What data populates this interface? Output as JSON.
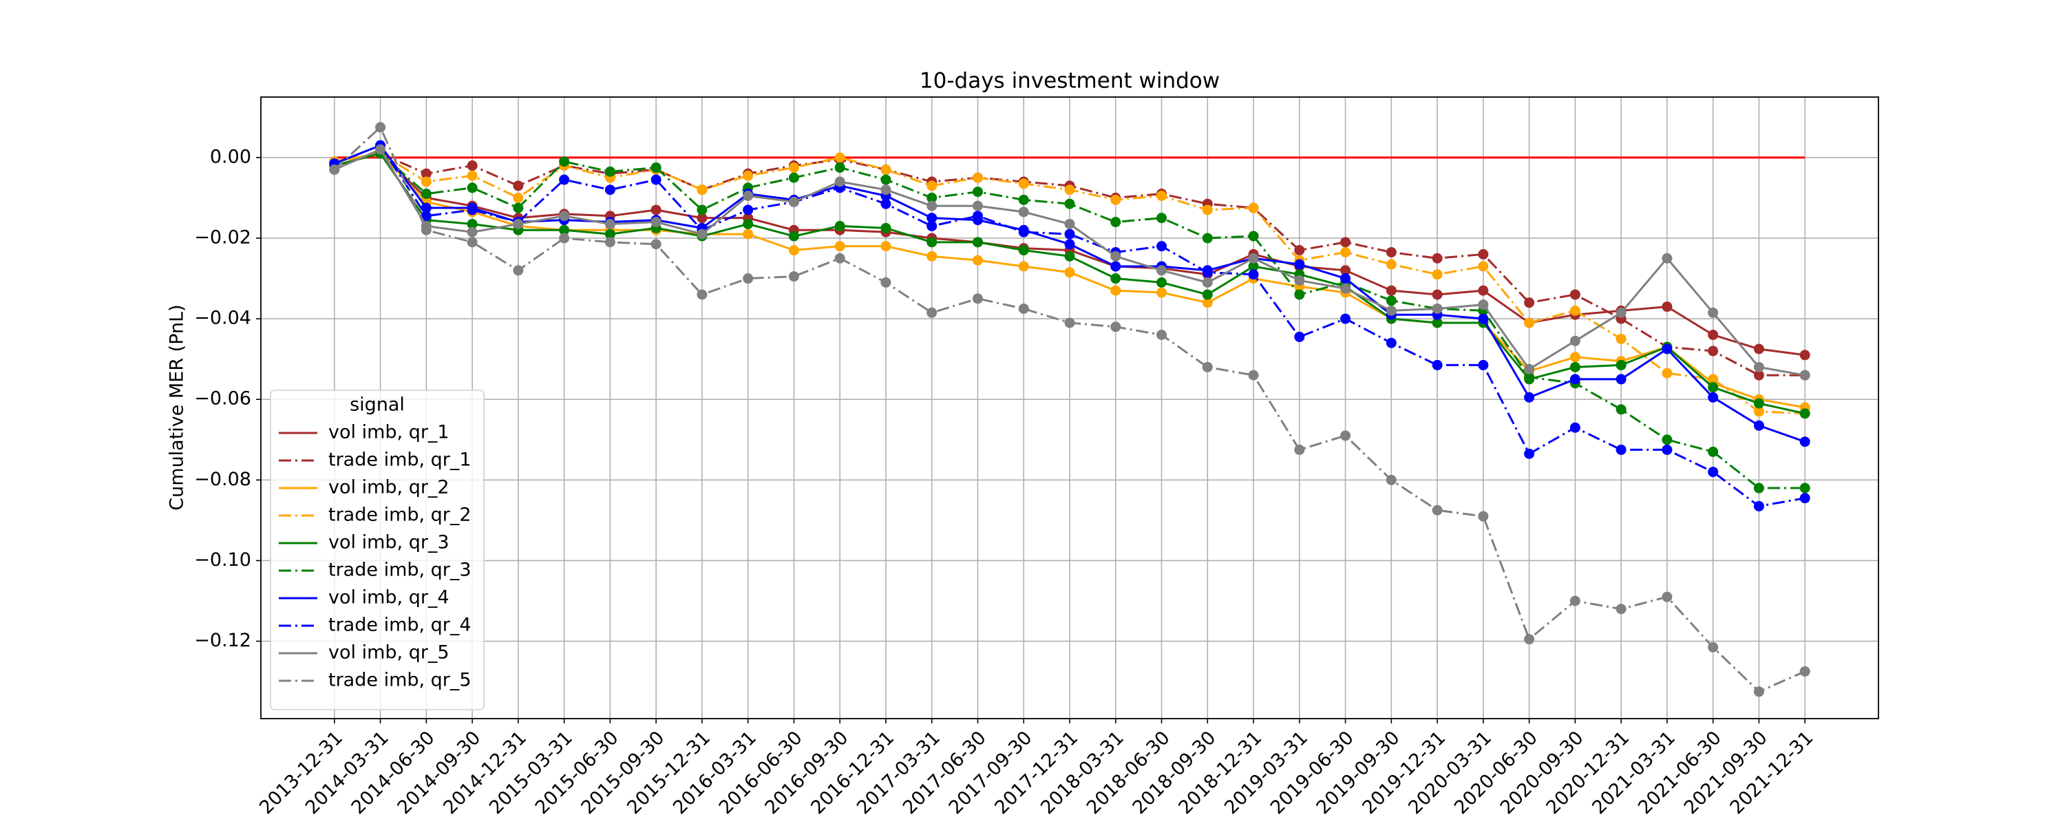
{
  "chart_data": {
    "type": "line",
    "title": "10-days investment window",
    "y_label": "Cumulative MER (PnL)",
    "legend_title": "signal",
    "legend_loc": "lower left",
    "grid": true,
    "categories": [
      "2013-12-31",
      "2014-03-31",
      "2014-06-30",
      "2014-09-30",
      "2014-12-31",
      "2015-03-31",
      "2015-06-30",
      "2015-09-30",
      "2015-12-31",
      "2016-03-31",
      "2016-06-30",
      "2016-09-30",
      "2016-12-31",
      "2017-03-31",
      "2017-06-30",
      "2017-09-30",
      "2017-12-31",
      "2018-03-31",
      "2018-06-30",
      "2018-09-30",
      "2018-12-31",
      "2019-03-31",
      "2019-06-30",
      "2019-09-30",
      "2019-12-31",
      "2020-03-31",
      "2020-06-30",
      "2020-09-30",
      "2020-12-31",
      "2021-03-31",
      "2021-06-30",
      "2021-09-30",
      "2021-12-31"
    ],
    "ylim": [
      -0.1392,
      0.015
    ],
    "yticks": [
      {
        "value": 0,
        "label": "0.00"
      },
      {
        "value": -0.02,
        "label": "−0.02"
      },
      {
        "value": -0.04,
        "label": "−0.04"
      },
      {
        "value": -0.06,
        "label": "−0.06"
      },
      {
        "value": -0.08,
        "label": "−0.08"
      },
      {
        "value": -0.1,
        "label": "−0.10"
      },
      {
        "value": -0.12,
        "label": "−0.12"
      }
    ],
    "series": [
      {
        "color": "#ff0000",
        "linestyle": "solid",
        "marker": false,
        "values": [
          0,
          0,
          0,
          0,
          0,
          0,
          0,
          0,
          0,
          0,
          0,
          0,
          0,
          0,
          0,
          0,
          0,
          0,
          0,
          0,
          0,
          0,
          0,
          0,
          0,
          0,
          0,
          0,
          0,
          0,
          0,
          0,
          0
        ]
      },
      {
        "name": "vol imb, qr_1",
        "color": "#a52a2a",
        "linestyle": "solid",
        "marker": true,
        "values": [
          -0.001,
          0.001,
          -0.01,
          -0.012,
          -0.015,
          -0.014,
          -0.0145,
          -0.013,
          -0.015,
          -0.015,
          -0.018,
          -0.018,
          -0.0185,
          -0.02,
          -0.021,
          -0.0225,
          -0.023,
          -0.027,
          -0.0275,
          -0.029,
          -0.024,
          -0.027,
          -0.028,
          -0.033,
          -0.034,
          -0.033,
          -0.041,
          -0.039,
          -0.038,
          -0.037,
          -0.044,
          -0.0475,
          -0.049
        ]
      },
      {
        "name": "trade imb, qr_1",
        "color": "#a52a2a",
        "linestyle": "dashdot",
        "marker": true,
        "values": [
          -0.001,
          0.001,
          -0.004,
          -0.002,
          -0.007,
          -0.002,
          -0.004,
          -0.003,
          -0.008,
          -0.004,
          -0.002,
          -0.0005,
          -0.003,
          -0.006,
          -0.005,
          -0.006,
          -0.007,
          -0.01,
          -0.009,
          -0.0115,
          -0.0125,
          -0.023,
          -0.021,
          -0.0235,
          -0.025,
          -0.024,
          -0.036,
          -0.034,
          -0.04,
          -0.047,
          -0.048,
          -0.054,
          -0.054
        ]
      },
      {
        "name": "vol imb, qr_2",
        "color": "#ffa500",
        "linestyle": "solid",
        "marker": true,
        "values": [
          -0.001,
          0.001,
          -0.011,
          -0.0135,
          -0.017,
          -0.018,
          -0.018,
          -0.018,
          -0.019,
          -0.019,
          -0.023,
          -0.022,
          -0.022,
          -0.0245,
          -0.0255,
          -0.027,
          -0.0285,
          -0.033,
          -0.0335,
          -0.036,
          -0.03,
          -0.032,
          -0.0335,
          -0.04,
          -0.041,
          -0.041,
          -0.053,
          -0.0495,
          -0.0505,
          -0.047,
          -0.056,
          -0.06,
          -0.062
        ]
      },
      {
        "name": "trade imb, qr_2",
        "color": "#ffa500",
        "linestyle": "dashdot",
        "marker": true,
        "values": [
          -0.001,
          0.001,
          -0.006,
          -0.0045,
          -0.01,
          -0.002,
          -0.005,
          -0.003,
          -0.008,
          -0.0045,
          -0.0025,
          0,
          -0.003,
          -0.007,
          -0.005,
          -0.0065,
          -0.008,
          -0.0105,
          -0.0095,
          -0.013,
          -0.0125,
          -0.0255,
          -0.0235,
          -0.0265,
          -0.029,
          -0.027,
          -0.041,
          -0.038,
          -0.045,
          -0.0535,
          -0.055,
          -0.063,
          -0.0635
        ]
      },
      {
        "name": "vol imb, qr_3",
        "color": "#008000",
        "linestyle": "solid",
        "marker": true,
        "values": [
          -0.002,
          0.001,
          -0.0155,
          -0.0165,
          -0.018,
          -0.018,
          -0.019,
          -0.0175,
          -0.0195,
          -0.0165,
          -0.0195,
          -0.017,
          -0.0175,
          -0.021,
          -0.021,
          -0.023,
          -0.0245,
          -0.03,
          -0.031,
          -0.034,
          -0.027,
          -0.029,
          -0.032,
          -0.04,
          -0.041,
          -0.041,
          -0.055,
          -0.052,
          -0.0515,
          -0.047,
          -0.057,
          -0.061,
          -0.0635
        ]
      },
      {
        "name": "trade imb, qr_3",
        "color": "#008000",
        "linestyle": "dashdot",
        "marker": true,
        "values": [
          -0.002,
          0.001,
          -0.009,
          -0.0075,
          -0.0125,
          -0.001,
          -0.0035,
          -0.0025,
          -0.013,
          -0.0075,
          -0.005,
          -0.0025,
          -0.0055,
          -0.01,
          -0.0085,
          -0.0105,
          -0.0115,
          -0.016,
          -0.015,
          -0.02,
          -0.0195,
          -0.034,
          -0.031,
          -0.0355,
          -0.0375,
          -0.038,
          -0.0545,
          -0.056,
          -0.0625,
          -0.07,
          -0.073,
          -0.082,
          -0.082
        ]
      },
      {
        "name": "vol imb, qr_4",
        "color": "#0000ff",
        "linestyle": "solid",
        "marker": true,
        "values": [
          -0.0015,
          0.003,
          -0.0125,
          -0.0125,
          -0.016,
          -0.0155,
          -0.016,
          -0.0155,
          -0.0175,
          -0.009,
          -0.0105,
          -0.007,
          -0.0095,
          -0.015,
          -0.0155,
          -0.018,
          -0.0215,
          -0.027,
          -0.027,
          -0.028,
          -0.025,
          -0.0265,
          -0.03,
          -0.039,
          -0.039,
          -0.04,
          -0.0595,
          -0.055,
          -0.055,
          -0.0475,
          -0.0595,
          -0.0665,
          -0.0705
        ]
      },
      {
        "name": "trade imb, qr_4",
        "color": "#0000ff",
        "linestyle": "dashdot",
        "marker": true,
        "values": [
          -0.0015,
          0.003,
          -0.0145,
          -0.013,
          -0.016,
          -0.0055,
          -0.008,
          -0.0055,
          -0.018,
          -0.013,
          -0.011,
          -0.0075,
          -0.0115,
          -0.017,
          -0.0145,
          -0.0185,
          -0.019,
          -0.0235,
          -0.022,
          -0.0285,
          -0.029,
          -0.0445,
          -0.04,
          -0.046,
          -0.0515,
          -0.0515,
          -0.0735,
          -0.067,
          -0.0725,
          -0.0725,
          -0.078,
          -0.0865,
          -0.0845
        ]
      },
      {
        "name": "vol imb, qr_5",
        "color": "#808080",
        "linestyle": "solid",
        "marker": true,
        "values": [
          -0.003,
          0.002,
          -0.017,
          -0.0185,
          -0.0165,
          -0.0145,
          -0.0165,
          -0.016,
          -0.019,
          -0.0095,
          -0.011,
          -0.006,
          -0.008,
          -0.012,
          -0.012,
          -0.0135,
          -0.0165,
          -0.0245,
          -0.028,
          -0.031,
          -0.025,
          -0.0305,
          -0.0325,
          -0.038,
          -0.0375,
          -0.0365,
          -0.0525,
          -0.0455,
          -0.0385,
          -0.025,
          -0.0385,
          -0.052,
          -0.054
        ]
      },
      {
        "name": "trade imb, qr_5",
        "color": "#808080",
        "linestyle": "dashdot",
        "marker": true,
        "values": [
          -0.003,
          0.0075,
          -0.018,
          -0.021,
          -0.028,
          -0.02,
          -0.021,
          -0.0215,
          -0.034,
          -0.03,
          -0.0295,
          -0.025,
          -0.031,
          -0.0385,
          -0.035,
          -0.0375,
          -0.041,
          -0.042,
          -0.044,
          -0.052,
          -0.054,
          -0.0725,
          -0.069,
          -0.08,
          -0.0875,
          -0.089,
          -0.1195,
          -0.11,
          -0.112,
          -0.109,
          -0.1215,
          -0.1325,
          -0.1275
        ]
      }
    ]
  }
}
